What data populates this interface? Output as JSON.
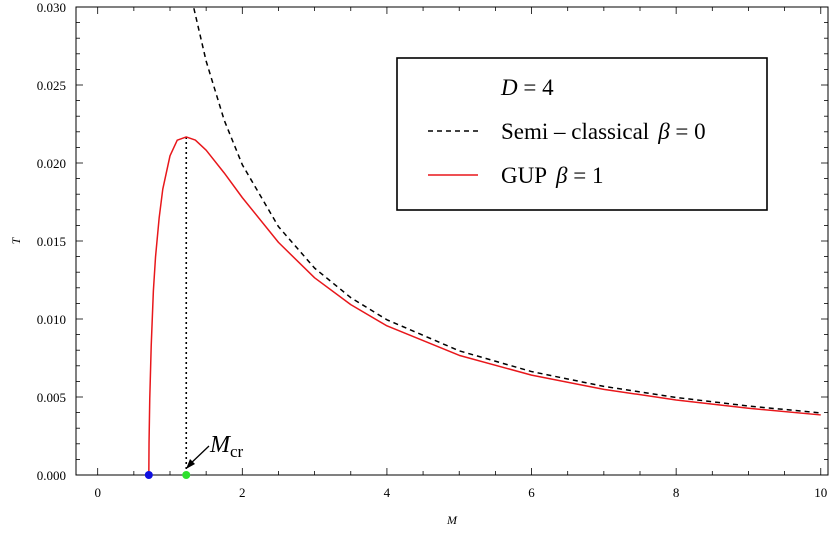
{
  "chart_data": {
    "type": "line",
    "xlabel": "M",
    "ylabel": "T",
    "xlim": [
      -0.3,
      10.1
    ],
    "ylim": [
      0,
      0.03
    ],
    "x_ticks": [
      "0",
      "2",
      "4",
      "6",
      "8",
      "10"
    ],
    "y_ticks": [
      "0.000",
      "0.005",
      "0.010",
      "0.015",
      "0.020",
      "0.025",
      "0.030"
    ],
    "legend": {
      "placement": "top-right",
      "header": {
        "var": "D",
        "op": "=",
        "val": "4"
      },
      "entries": [
        {
          "text": "Semi – classical",
          "param": "β",
          "op": "=",
          "val": "0"
        },
        {
          "text": "GUP",
          "param": "β",
          "op": "=",
          "val": "1"
        }
      ]
    },
    "series": [
      {
        "style": "dashed",
        "color": "#000000",
        "x": [
          1.33,
          1.5,
          1.75,
          2,
          2.5,
          3,
          3.5,
          4,
          5,
          6,
          7,
          8,
          9,
          10
        ],
        "y": [
          0.02992,
          0.02653,
          0.02274,
          0.01989,
          0.01592,
          0.01326,
          0.01137,
          0.00995,
          0.00796,
          0.00663,
          0.00568,
          0.00497,
          0.00442,
          0.00398
        ]
      },
      {
        "style": "solid",
        "color": "#e8171b",
        "x": [
          0.7071,
          0.71,
          0.72,
          0.74,
          0.77,
          0.8,
          0.85,
          0.9,
          1,
          1.1,
          1.2247,
          1.35,
          1.5,
          1.75,
          2,
          2.5,
          3,
          3.5,
          4,
          5,
          6,
          7,
          8,
          9,
          10
        ],
        "y": [
          0,
          0.00204,
          0.00487,
          0.00826,
          0.0118,
          0.01399,
          0.01648,
          0.01832,
          0.02046,
          0.02146,
          0.02167,
          0.02147,
          0.02082,
          0.01936,
          0.01778,
          0.01491,
          0.01264,
          0.01092,
          0.00956,
          0.00767,
          0.0064,
          0.00549,
          0.00481,
          0.00428,
          0.00385
        ]
      }
    ],
    "annotations": [
      {
        "kind": "vertical-dotted",
        "x": 1.2247,
        "y_top": 0.02167
      },
      {
        "kind": "point",
        "x": 0.7071,
        "y": 0,
        "color": "#1010e0"
      },
      {
        "kind": "point",
        "x": 1.2247,
        "y": 0,
        "color": "#2ee02e"
      },
      {
        "kind": "label",
        "main": "M",
        "sub": "cr",
        "x": 1.2247,
        "y": 0
      }
    ]
  }
}
